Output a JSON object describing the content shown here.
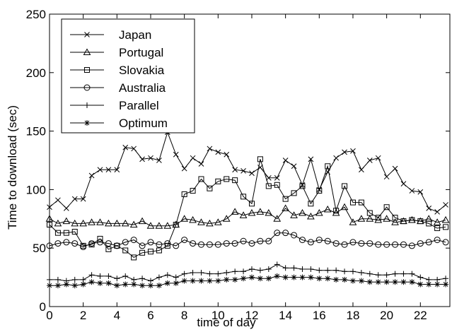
{
  "chart_data": {
    "type": "line",
    "title": "",
    "xlabel": "time of day",
    "ylabel": "Time to download (sec)",
    "xlim": [
      0,
      23.75
    ],
    "ylim": [
      0,
      250
    ],
    "xticks": [
      0,
      2,
      4,
      6,
      8,
      10,
      12,
      14,
      16,
      18,
      20,
      22
    ],
    "yticks": [
      0,
      50,
      100,
      150,
      200,
      250
    ],
    "grid": false,
    "legend_position": "top-left",
    "x": [
      0,
      0.5,
      1,
      1.5,
      2,
      2.5,
      3,
      3.5,
      4,
      4.5,
      5,
      5.5,
      6,
      6.5,
      7,
      7.5,
      8,
      8.5,
      9,
      9.5,
      10,
      10.5,
      11,
      11.5,
      12,
      12.5,
      13,
      13.5,
      14,
      14.5,
      15,
      15.5,
      16,
      16.5,
      17,
      17.5,
      18,
      18.5,
      19,
      19.5,
      20,
      20.5,
      21,
      21.5,
      22,
      22.5,
      23,
      23.5
    ],
    "series": [
      {
        "name": "Japan",
        "marker": "x",
        "values": [
          85,
          91,
          84,
          92,
          92,
          112,
          117,
          117,
          117,
          136,
          135,
          126,
          127,
          125,
          149,
          130,
          118,
          127,
          122,
          135,
          132,
          130,
          117,
          116,
          114,
          119,
          110,
          110,
          125,
          120,
          104,
          126,
          100,
          115,
          127,
          132,
          133,
          117,
          125,
          127,
          111,
          118,
          105,
          99,
          98,
          84,
          81,
          87
        ]
      },
      {
        "name": "Portugal",
        "marker": "triangle",
        "values": [
          75,
          71,
          73,
          71,
          71,
          72,
          72,
          71,
          71,
          71,
          70,
          73,
          69,
          69,
          69,
          70,
          75,
          74,
          72,
          71,
          72,
          75,
          81,
          78,
          80,
          81,
          80,
          75,
          84,
          78,
          80,
          77,
          80,
          83,
          80,
          85,
          72,
          75,
          75,
          74,
          75,
          72,
          73,
          74,
          73,
          75,
          72,
          74
        ]
      },
      {
        "name": "Slovakia",
        "marker": "square",
        "values": [
          70,
          63,
          63,
          64,
          52,
          53,
          58,
          49,
          52,
          48,
          42,
          46,
          47,
          48,
          52,
          70,
          96,
          99,
          109,
          101,
          107,
          109,
          108,
          94,
          88,
          126,
          103,
          104,
          92,
          97,
          103,
          88,
          99,
          120,
          82,
          103,
          89,
          89,
          80,
          76,
          85,
          76,
          73,
          74,
          73,
          71,
          67,
          68
        ]
      },
      {
        "name": "Australia",
        "marker": "circle",
        "values": [
          52,
          54,
          55,
          54,
          51,
          54,
          55,
          54,
          52,
          55,
          57,
          52,
          55,
          53,
          54,
          52,
          57,
          54,
          53,
          53,
          53,
          54,
          54,
          56,
          54,
          56,
          56,
          63,
          63,
          61,
          57,
          55,
          57,
          56,
          54,
          53,
          55,
          54,
          54,
          53,
          53,
          53,
          53,
          52,
          54,
          55,
          57,
          55
        ]
      },
      {
        "name": "Parallel",
        "marker": "plus",
        "values": [
          23,
          23,
          22,
          23,
          23,
          27,
          26,
          26,
          24,
          26,
          23,
          24,
          22,
          25,
          27,
          25,
          28,
          29,
          29,
          28,
          28,
          29,
          30,
          30,
          32,
          31,
          32,
          36,
          33,
          33,
          32,
          32,
          31,
          31,
          31,
          30,
          30,
          29,
          28,
          27,
          27,
          28,
          28,
          28,
          25,
          23,
          23,
          24
        ]
      },
      {
        "name": "Optimum",
        "marker": "star",
        "values": [
          18,
          18,
          19,
          18,
          19,
          21,
          20,
          20,
          18,
          19,
          19,
          18,
          18,
          18,
          20,
          20,
          22,
          22,
          22,
          22,
          22,
          23,
          23,
          24,
          25,
          24,
          24,
          26,
          25,
          25,
          25,
          25,
          24,
          24,
          23,
          23,
          22,
          22,
          21,
          21,
          21,
          21,
          21,
          21,
          19,
          19,
          19,
          19
        ]
      }
    ]
  }
}
